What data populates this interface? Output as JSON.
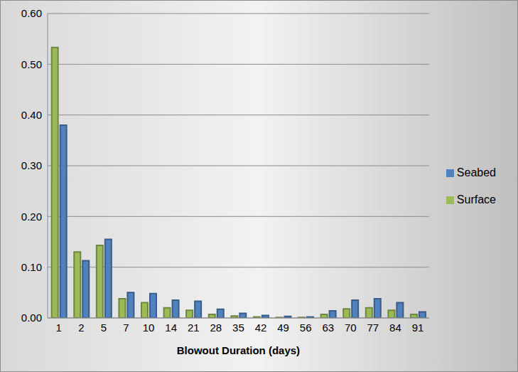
{
  "chart_data": {
    "type": "bar",
    "x_label": "Blowout Duration (days)",
    "categories": [
      "1",
      "2",
      "5",
      "7",
      "10",
      "14",
      "21",
      "28",
      "35",
      "42",
      "49",
      "56",
      "63",
      "70",
      "77",
      "84",
      "91"
    ],
    "series": [
      {
        "name": "Surface",
        "color": "#9bbb59",
        "values": [
          0.533,
          0.13,
          0.143,
          0.038,
          0.03,
          0.02,
          0.015,
          0.007,
          0.004,
          0.002,
          0.001,
          0.001,
          0.007,
          0.018,
          0.02,
          0.015,
          0.007
        ]
      },
      {
        "name": "Seabed",
        "color": "#4f81bd",
        "values": [
          0.38,
          0.113,
          0.155,
          0.05,
          0.048,
          0.035,
          0.033,
          0.017,
          0.009,
          0.005,
          0.003,
          0.002,
          0.014,
          0.035,
          0.038,
          0.03,
          0.012
        ]
      }
    ],
    "ylim": [
      0,
      0.6
    ],
    "yticks": [
      {
        "value": 0,
        "label": "0.00"
      },
      {
        "value": 0.1,
        "label": "0.10"
      },
      {
        "value": 0.2,
        "label": "0.20"
      },
      {
        "value": 0.3,
        "label": "0.30"
      },
      {
        "value": 0.4,
        "label": "0.40"
      },
      {
        "value": 0.5,
        "label": "0.50"
      },
      {
        "value": 0.6,
        "label": "0.60"
      }
    ],
    "grid": true,
    "legend": "right"
  }
}
